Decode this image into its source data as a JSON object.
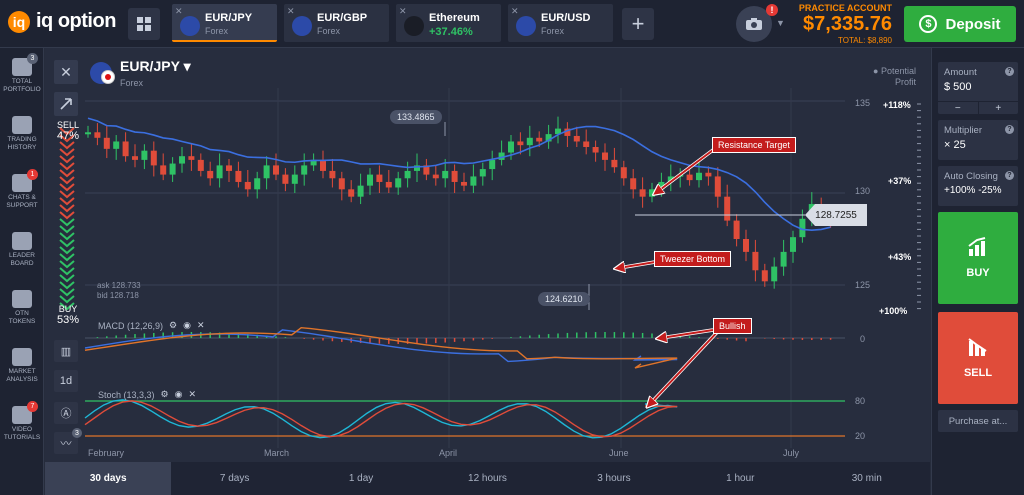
{
  "brand": {
    "logo_letter": "iq",
    "name": "iq option"
  },
  "tabs": [
    {
      "name": "EUR/JPY",
      "sub": "Forex",
      "active": true
    },
    {
      "name": "EUR/GBP",
      "sub": "Forex",
      "active": false
    },
    {
      "name": "Ethereum",
      "sub": "+37.46%",
      "active": false
    },
    {
      "name": "EUR/USD",
      "sub": "Forex",
      "active": false
    }
  ],
  "account": {
    "type": "PRACTICE ACCOUNT",
    "balance": "$7,335.76",
    "total": "TOTAL: $8,890",
    "camera_badge": "!"
  },
  "deposit": {
    "label": "Deposit",
    "icon_glyph": "$"
  },
  "leftnav": [
    {
      "label1": "TOTAL",
      "label2": "PORTFOLIO",
      "badge": "3",
      "icon": "briefcase-icon"
    },
    {
      "label1": "TRADING",
      "label2": "HISTORY",
      "badge": "",
      "icon": "history-icon"
    },
    {
      "label1": "CHATS &",
      "label2": "SUPPORT",
      "badge": "1",
      "icon": "chat-icon"
    },
    {
      "label1": "LEADER",
      "label2": "BOARD",
      "badge": "",
      "icon": "leaderboard-icon"
    },
    {
      "label1": "OTN",
      "label2": "TOKENS",
      "badge": "",
      "icon": "token-icon"
    },
    {
      "label1": "MARKET",
      "label2": "ANALYSIS",
      "badge": "",
      "icon": "analysis-icon"
    },
    {
      "label1": "VIDEO",
      "label2": "TUTORIALS",
      "badge": "7",
      "icon": "video-icon"
    }
  ],
  "chart": {
    "pair": "EUR/JPY",
    "pair_caret": "▾",
    "category": "Forex",
    "sell_label": "SELL",
    "sell_pct": "47%",
    "buy_label": "BUY",
    "buy_pct": "53%",
    "ask": "ask 128.733",
    "bid": "bid 128.718",
    "current_price": "128.7255",
    "high_pill": "133.4865",
    "low_pill": "124.6210",
    "potential_profit": "Potential\nProfit",
    "profit_levels": [
      "+118%",
      "+37%",
      "+43%",
      "+100%"
    ],
    "price_ticks": [
      "135",
      "130",
      "125"
    ],
    "macd_label": "MACD (12,26,9)",
    "macd_zero": "0",
    "stoch_label": "Stoch (13,3,3)",
    "stoch_levels": [
      "80",
      "20"
    ],
    "months": [
      "February",
      "March",
      "April",
      "June",
      "July"
    ],
    "callouts": {
      "resistance": "Resistance Target",
      "tweezer": "Tweezer Bottom",
      "bullish": "Bullish"
    },
    "tool_badge": "3",
    "colors": {
      "bull": "#2fc265",
      "bear": "#e04c3a",
      "ma": "#3b6fe0",
      "macd_signal": "#e0742a",
      "stoch_k": "#1fb7d6",
      "stoch_d": "#e04c3a",
      "callout": "#c31c1c"
    }
  },
  "chart_data": {
    "type": "candlestick",
    "price_axis": {
      "ticks": [
        135,
        130,
        125
      ],
      "range": [
        123,
        136
      ]
    },
    "current": 128.7255,
    "high": 133.4865,
    "low": 124.621,
    "stoch_bands": [
      80,
      20
    ]
  },
  "timeframes": [
    "30 days",
    "7 days",
    "1 day",
    "12 hours",
    "3 hours",
    "1 hour",
    "30 min"
  ],
  "timeframe_active": 0,
  "right": {
    "amount_label": "Amount",
    "amount_value": "$  500",
    "multiplier_label": "Multiplier",
    "multiplier_value": "× 25",
    "autoclose_label": "Auto Closing",
    "autoclose_value": "+100%  -25%",
    "minus": "−",
    "plus": "+",
    "help": "?",
    "buy": "BUY",
    "sell": "SELL",
    "purchase": "Purchase at..."
  }
}
